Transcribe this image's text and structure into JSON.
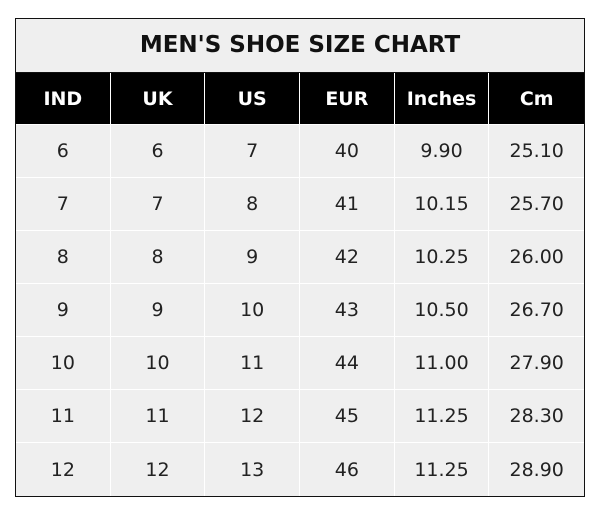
{
  "title": "MEN'S SHOE SIZE CHART",
  "headers": [
    "IND",
    "UK",
    "US",
    "EUR",
    "Inches",
    "Cm"
  ],
  "rows": [
    [
      "6",
      "6",
      "7",
      "40",
      "9.90",
      "25.10"
    ],
    [
      "7",
      "7",
      "8",
      "41",
      "10.15",
      "25.70"
    ],
    [
      "8",
      "8",
      "9",
      "42",
      "10.25",
      "26.00"
    ],
    [
      "9",
      "9",
      "10",
      "43",
      "10.50",
      "26.70"
    ],
    [
      "10",
      "10",
      "11",
      "44",
      "11.00",
      "27.90"
    ],
    [
      "11",
      "11",
      "12",
      "45",
      "11.25",
      "28.30"
    ],
    [
      "12",
      "12",
      "13",
      "46",
      "11.25",
      "28.90"
    ]
  ],
  "colors": {
    "header_bg": "#000000",
    "cell_bg": "#efefef",
    "header_text": "#ffffff"
  }
}
